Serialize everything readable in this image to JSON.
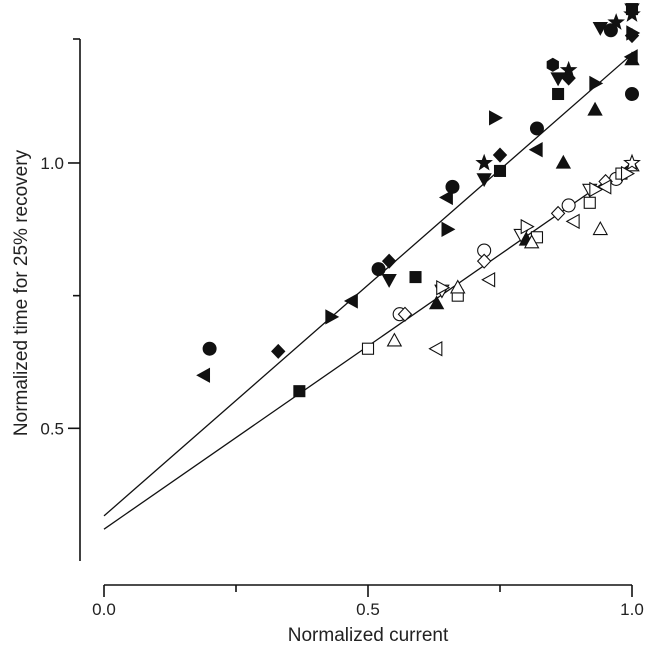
{
  "chart_data": {
    "type": "scatter",
    "title": "",
    "xlabel": "Normalized current",
    "ylabel": "Normalized time for 25% recovery",
    "xlim": [
      0.0,
      1.0
    ],
    "ylim": [
      0.25,
      1.26
    ],
    "x_ticks": [
      {
        "value": 0.0,
        "label": "0.0"
      },
      {
        "value": 0.5,
        "label": "0.5"
      },
      {
        "value": 1.0,
        "label": "1.0"
      }
    ],
    "x_minor_ticks": [
      0.25,
      0.75
    ],
    "y_ticks": [
      {
        "value": 0.5,
        "label": "0.5"
      },
      {
        "value": 1.0,
        "label": "1.0"
      }
    ],
    "y_minor_ticks": [
      0.75
    ],
    "grid": false,
    "fit_lines": [
      {
        "name": "",
        "style": "filled",
        "x": [
          0.0,
          1.0
        ],
        "y": [
          0.335,
          1.205
        ]
      },
      {
        "name": "",
        "style": "open",
        "x": [
          0.0,
          1.0
        ],
        "y": [
          0.31,
          1.0
        ]
      }
    ],
    "series": [
      {
        "name": "",
        "marker": "circle",
        "filled": true,
        "color": "#111111",
        "points": [
          [
            0.2,
            0.65
          ],
          [
            0.52,
            0.8
          ],
          [
            0.66,
            0.955
          ],
          [
            0.82,
            1.065
          ],
          [
            0.96,
            1.25
          ],
          [
            1.0,
            1.13
          ]
        ]
      },
      {
        "name": "",
        "marker": "square",
        "filled": true,
        "color": "#111111",
        "points": [
          [
            0.37,
            0.57
          ],
          [
            0.59,
            0.785
          ],
          [
            0.75,
            0.985
          ],
          [
            0.86,
            1.13
          ],
          [
            1.0,
            1.29
          ]
        ]
      },
      {
        "name": "",
        "marker": "triangle-up",
        "filled": true,
        "color": "#111111",
        "points": [
          [
            0.63,
            0.735
          ],
          [
            0.8,
            0.855
          ],
          [
            0.87,
            1.0
          ],
          [
            0.93,
            1.1
          ],
          [
            1.0,
            1.195
          ]
        ]
      },
      {
        "name": "",
        "marker": "triangle-down",
        "filled": true,
        "color": "#111111",
        "points": [
          [
            0.54,
            0.78
          ],
          [
            0.72,
            0.97
          ],
          [
            0.86,
            1.16
          ],
          [
            0.94,
            1.255
          ],
          [
            1.0,
            1.29
          ]
        ]
      },
      {
        "name": "",
        "marker": "diamond",
        "filled": true,
        "color": "#111111",
        "points": [
          [
            0.33,
            0.645
          ],
          [
            0.54,
            0.815
          ],
          [
            0.75,
            1.015
          ],
          [
            0.88,
            1.16
          ],
          [
            1.0,
            1.24
          ]
        ]
      },
      {
        "name": "",
        "marker": "triangle-left",
        "filled": true,
        "color": "#111111",
        "points": [
          [
            0.19,
            0.6
          ],
          [
            0.47,
            0.74
          ],
          [
            0.65,
            0.935
          ],
          [
            0.82,
            1.025
          ],
          [
            1.0,
            1.2
          ]
        ]
      },
      {
        "name": "",
        "marker": "triangle-right",
        "filled": true,
        "color": "#111111",
        "points": [
          [
            0.43,
            0.71
          ],
          [
            0.65,
            0.875
          ],
          [
            0.74,
            1.085
          ],
          [
            0.93,
            1.15
          ],
          [
            1.0,
            1.245
          ]
        ]
      },
      {
        "name": "",
        "marker": "star",
        "filled": true,
        "color": "#111111",
        "points": [
          [
            0.72,
            1.0
          ],
          [
            0.88,
            1.175
          ],
          [
            0.97,
            1.265
          ],
          [
            1.0,
            1.28
          ]
        ]
      },
      {
        "name": "",
        "marker": "hexagon",
        "filled": true,
        "color": "#111111",
        "points": [
          [
            0.85,
            1.185
          ]
        ]
      },
      {
        "name": "",
        "marker": "circle",
        "filled": false,
        "color": "#111111",
        "points": [
          [
            0.56,
            0.715
          ],
          [
            0.72,
            0.835
          ],
          [
            0.88,
            0.92
          ],
          [
            0.97,
            0.97
          ]
        ]
      },
      {
        "name": "",
        "marker": "square",
        "filled": false,
        "color": "#111111",
        "points": [
          [
            0.5,
            0.65
          ],
          [
            0.67,
            0.75
          ],
          [
            0.82,
            0.86
          ],
          [
            0.92,
            0.925
          ],
          [
            0.98,
            0.98
          ]
        ]
      },
      {
        "name": "",
        "marker": "triangle-up",
        "filled": false,
        "color": "#111111",
        "points": [
          [
            0.55,
            0.665
          ],
          [
            0.67,
            0.765
          ],
          [
            0.81,
            0.85
          ],
          [
            0.94,
            0.875
          ],
          [
            1.0,
            0.995
          ]
        ]
      },
      {
        "name": "",
        "marker": "triangle-down",
        "filled": false,
        "color": "#111111",
        "points": [
          [
            0.64,
            0.76
          ],
          [
            0.79,
            0.865
          ],
          [
            0.92,
            0.95
          ]
        ]
      },
      {
        "name": "",
        "marker": "diamond",
        "filled": false,
        "color": "#111111",
        "points": [
          [
            0.57,
            0.715
          ],
          [
            0.72,
            0.815
          ],
          [
            0.86,
            0.905
          ],
          [
            0.95,
            0.965
          ]
        ]
      },
      {
        "name": "",
        "marker": "triangle-left",
        "filled": false,
        "color": "#111111",
        "points": [
          [
            0.63,
            0.65
          ],
          [
            0.73,
            0.78
          ],
          [
            0.89,
            0.89
          ],
          [
            0.95,
            0.955
          ]
        ]
      },
      {
        "name": "",
        "marker": "triangle-right",
        "filled": false,
        "color": "#111111",
        "points": [
          [
            0.64,
            0.765
          ],
          [
            0.8,
            0.88
          ],
          [
            0.93,
            0.95
          ],
          [
            0.99,
            0.98
          ]
        ]
      },
      {
        "name": "",
        "marker": "star",
        "filled": false,
        "color": "#111111",
        "points": [
          [
            1.0,
            1.0
          ]
        ]
      }
    ]
  }
}
